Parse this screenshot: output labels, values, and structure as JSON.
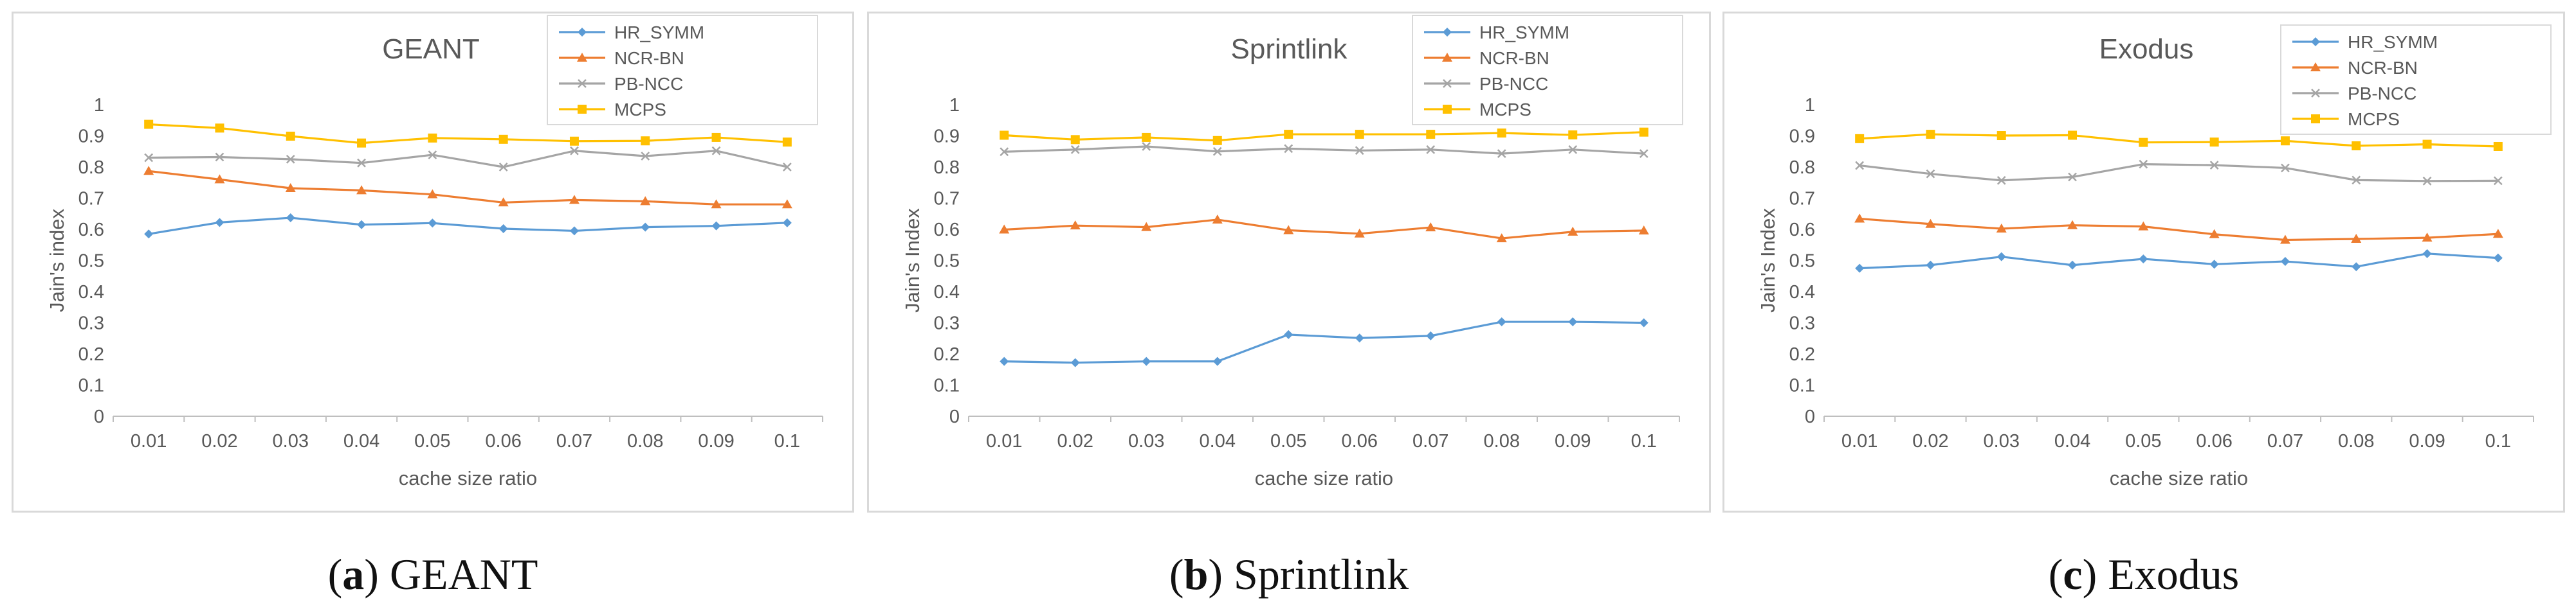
{
  "captions": [
    {
      "letter": "a",
      "title": "GEANT"
    },
    {
      "letter": "b",
      "title": "Sprintlink"
    },
    {
      "letter": "c",
      "title": "Exodus"
    }
  ],
  "chart_data": [
    {
      "type": "line",
      "title": "GEANT",
      "xlabel": "cache size ratio",
      "ylabel": "Jain's index",
      "categories": [
        "0.01",
        "0.02",
        "0.03",
        "0.04",
        "0.05",
        "0.06",
        "0.07",
        "0.08",
        "0.09",
        "0.1"
      ],
      "ylim": [
        0,
        1
      ],
      "yticks": [
        "0",
        "0.1",
        "0.2",
        "0.3",
        "0.4",
        "0.5",
        "0.6",
        "0.7",
        "0.8",
        "0.9",
        "1"
      ],
      "legend_position": "top-right",
      "series": [
        {
          "name": "HR_SYMM",
          "color": "#5b9bd5",
          "marker": "diamond",
          "values": [
            0.585,
            0.622,
            0.637,
            0.615,
            0.62,
            0.602,
            0.595,
            0.607,
            0.611,
            0.621
          ]
        },
        {
          "name": "NCR-BN",
          "color": "#ed7d31",
          "marker": "triangle",
          "values": [
            0.787,
            0.76,
            0.732,
            0.725,
            0.712,
            0.686,
            0.694,
            0.69,
            0.68,
            0.68
          ]
        },
        {
          "name": "PB-NCC",
          "color": "#a5a5a5",
          "marker": "x",
          "values": [
            0.83,
            0.832,
            0.825,
            0.813,
            0.839,
            0.8,
            0.852,
            0.835,
            0.852,
            0.8
          ]
        },
        {
          "name": "MCPS",
          "color": "#ffc000",
          "marker": "square",
          "values": [
            0.937,
            0.925,
            0.899,
            0.877,
            0.893,
            0.889,
            0.883,
            0.884,
            0.895,
            0.88
          ]
        }
      ]
    },
    {
      "type": "line",
      "title": "Sprintlink",
      "xlabel": "cache size ratio",
      "ylabel": "Jain's Index",
      "categories": [
        "0.01",
        "0.02",
        "0.03",
        "0.04",
        "0.05",
        "0.06",
        "0.07",
        "0.08",
        "0.09",
        "0.1"
      ],
      "ylim": [
        0,
        1
      ],
      "yticks": [
        "0",
        "0.1",
        "0.2",
        "0.3",
        "0.4",
        "0.5",
        "0.6",
        "0.7",
        "0.8",
        "0.9",
        "1"
      ],
      "legend_position": "top-right",
      "series": [
        {
          "name": "HR_SYMM",
          "color": "#5b9bd5",
          "marker": "diamond",
          "values": [
            0.176,
            0.172,
            0.176,
            0.176,
            0.262,
            0.251,
            0.258,
            0.303,
            0.303,
            0.3
          ]
        },
        {
          "name": "NCR-BN",
          "color": "#ed7d31",
          "marker": "triangle",
          "values": [
            0.599,
            0.612,
            0.607,
            0.631,
            0.597,
            0.586,
            0.606,
            0.571,
            0.592,
            0.596
          ]
        },
        {
          "name": "PB-NCC",
          "color": "#a5a5a5",
          "marker": "x",
          "values": [
            0.849,
            0.856,
            0.866,
            0.85,
            0.859,
            0.853,
            0.856,
            0.843,
            0.856,
            0.843
          ]
        },
        {
          "name": "MCPS",
          "color": "#ffc000",
          "marker": "square",
          "values": [
            0.902,
            0.888,
            0.895,
            0.885,
            0.905,
            0.905,
            0.905,
            0.909,
            0.903,
            0.912
          ]
        }
      ]
    },
    {
      "type": "line",
      "title": "Exodus",
      "xlabel": "cache size ratio",
      "ylabel": "Jain's Index",
      "categories": [
        "0.01",
        "0.02",
        "0.03",
        "0.04",
        "0.05",
        "0.06",
        "0.07",
        "0.08",
        "0.09",
        "0.1"
      ],
      "ylim": [
        0,
        1
      ],
      "yticks": [
        "0",
        "0.1",
        "0.2",
        "0.3",
        "0.4",
        "0.5",
        "0.6",
        "0.7",
        "0.8",
        "0.9",
        "1"
      ],
      "legend_position": "top-right",
      "series": [
        {
          "name": "HR_SYMM",
          "color": "#5b9bd5",
          "marker": "diamond",
          "values": [
            0.475,
            0.485,
            0.512,
            0.485,
            0.505,
            0.488,
            0.497,
            0.48,
            0.522,
            0.508
          ]
        },
        {
          "name": "NCR-BN",
          "color": "#ed7d31",
          "marker": "triangle",
          "values": [
            0.634,
            0.617,
            0.602,
            0.613,
            0.609,
            0.584,
            0.566,
            0.569,
            0.573,
            0.585
          ]
        },
        {
          "name": "PB-NCC",
          "color": "#a5a5a5",
          "marker": "x",
          "values": [
            0.805,
            0.778,
            0.757,
            0.768,
            0.809,
            0.806,
            0.797,
            0.758,
            0.755,
            0.756
          ]
        },
        {
          "name": "MCPS",
          "color": "#ffc000",
          "marker": "square",
          "values": [
            0.891,
            0.905,
            0.901,
            0.902,
            0.879,
            0.88,
            0.884,
            0.868,
            0.873,
            0.866
          ]
        }
      ]
    }
  ]
}
